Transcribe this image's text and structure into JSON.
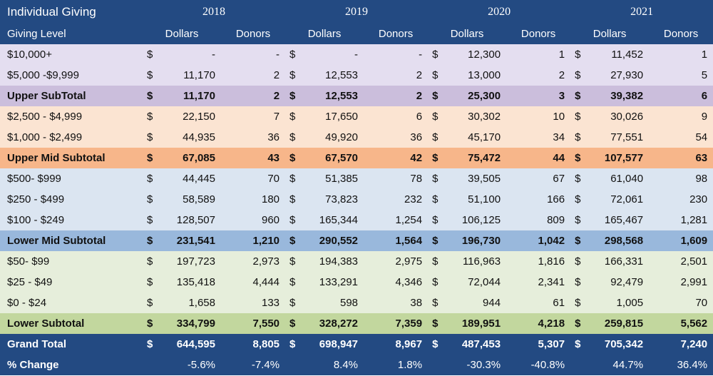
{
  "header": {
    "title": "Individual Giving",
    "level_label": "Giving Level",
    "years": [
      "2018",
      "2019",
      "2020",
      "2021"
    ],
    "col_dollars": "Dollars",
    "col_donors": "Donors"
  },
  "currency": "$",
  "rows": [
    {
      "type": "upper",
      "label": "$10,000+",
      "cells": [
        [
          "-",
          "-"
        ],
        [
          "-",
          "-"
        ],
        [
          "12,300",
          "1"
        ],
        [
          "11,452",
          "1"
        ]
      ]
    },
    {
      "type": "upper",
      "label": "$5,000 -$9,999",
      "cells": [
        [
          "11,170",
          "2"
        ],
        [
          "12,553",
          "2"
        ],
        [
          "13,000",
          "2"
        ],
        [
          "27,930",
          "5"
        ]
      ]
    },
    {
      "type": "upper-sub",
      "label": "Upper SubTotal",
      "cells": [
        [
          "11,170",
          "2"
        ],
        [
          "12,553",
          "2"
        ],
        [
          "25,300",
          "3"
        ],
        [
          "39,382",
          "6"
        ]
      ]
    },
    {
      "type": "uppermid",
      "label": "$2,500 - $4,999",
      "cells": [
        [
          "22,150",
          "7"
        ],
        [
          "17,650",
          "6"
        ],
        [
          "30,302",
          "10"
        ],
        [
          "30,026",
          "9"
        ]
      ]
    },
    {
      "type": "uppermid",
      "label": "$1,000 - $2,499",
      "cells": [
        [
          "44,935",
          "36"
        ],
        [
          "49,920",
          "36"
        ],
        [
          "45,170",
          "34"
        ],
        [
          "77,551",
          "54"
        ]
      ]
    },
    {
      "type": "uppermid-sub",
      "label": "Upper Mid Subtotal",
      "cells": [
        [
          "67,085",
          "43"
        ],
        [
          "67,570",
          "42"
        ],
        [
          "75,472",
          "44"
        ],
        [
          "107,577",
          "63"
        ]
      ]
    },
    {
      "type": "lowermid",
      "label": "$500- $999",
      "cells": [
        [
          "44,445",
          "70"
        ],
        [
          "51,385",
          "78"
        ],
        [
          "39,505",
          "67"
        ],
        [
          "61,040",
          "98"
        ]
      ]
    },
    {
      "type": "lowermid",
      "label": "$250 - $499",
      "cells": [
        [
          "58,589",
          "180"
        ],
        [
          "73,823",
          "232"
        ],
        [
          "51,100",
          "166"
        ],
        [
          "72,061",
          "230"
        ]
      ]
    },
    {
      "type": "lowermid",
      "label": "$100 - $249",
      "cells": [
        [
          "128,507",
          "960"
        ],
        [
          "165,344",
          "1,254"
        ],
        [
          "106,125",
          "809"
        ],
        [
          "165,467",
          "1,281"
        ]
      ]
    },
    {
      "type": "lowermid-sub",
      "label": "Lower Mid Subtotal",
      "cells": [
        [
          "231,541",
          "1,210"
        ],
        [
          "290,552",
          "1,564"
        ],
        [
          "196,730",
          "1,042"
        ],
        [
          "298,568",
          "1,609"
        ]
      ]
    },
    {
      "type": "lower",
      "label": "$50- $99",
      "cells": [
        [
          "197,723",
          "2,973"
        ],
        [
          "194,383",
          "2,975"
        ],
        [
          "116,963",
          "1,816"
        ],
        [
          "166,331",
          "2,501"
        ]
      ]
    },
    {
      "type": "lower",
      "label": "$25 - $49",
      "cells": [
        [
          "135,418",
          "4,444"
        ],
        [
          "133,291",
          "4,346"
        ],
        [
          "72,044",
          "2,341"
        ],
        [
          "92,479",
          "2,991"
        ]
      ]
    },
    {
      "type": "lower",
      "label": "$0 - $24",
      "cells": [
        [
          "1,658",
          "133"
        ],
        [
          "598",
          "38"
        ],
        [
          "944",
          "61"
        ],
        [
          "1,005",
          "70"
        ]
      ]
    },
    {
      "type": "lower-sub",
      "label": "Lower Subtotal",
      "cells": [
        [
          "334,799",
          "7,550"
        ],
        [
          "328,272",
          "7,359"
        ],
        [
          "189,951",
          "4,218"
        ],
        [
          "259,815",
          "5,562"
        ]
      ]
    },
    {
      "type": "grand",
      "label": "Grand Total",
      "cells": [
        [
          "644,595",
          "8,805"
        ],
        [
          "698,947",
          "8,967"
        ],
        [
          "487,453",
          "5,307"
        ],
        [
          "705,342",
          "7,240"
        ]
      ]
    }
  ],
  "pct_change": {
    "label": "% Change",
    "cells": [
      [
        "-5.6%",
        "-7.4%"
      ],
      [
        "8.4%",
        "1.8%"
      ],
      [
        "-30.3%",
        "-40.8%"
      ],
      [
        "44.7%",
        "36.4%"
      ]
    ]
  }
}
